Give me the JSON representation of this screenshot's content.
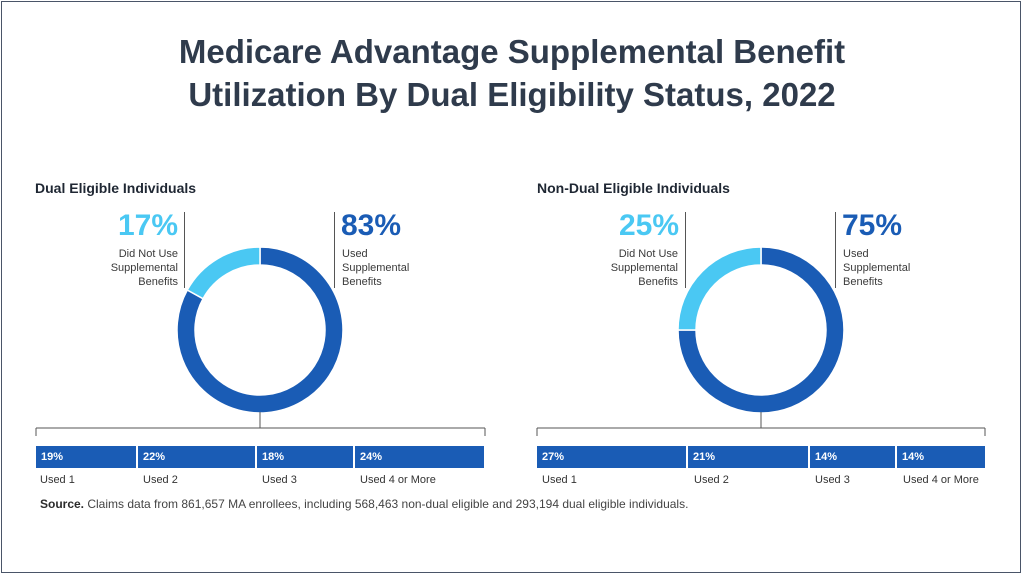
{
  "title_line1": "Medicare Advantage Supplemental Benefit",
  "title_line2": "Utilization By Dual Eligibility Status, 2022",
  "colors": {
    "used": "#1a5cb5",
    "not_used": "#4ac8f3"
  },
  "chart_data": [
    {
      "type": "pie",
      "title": "Dual Eligible Individuals",
      "slices": [
        {
          "label": "Used Supplemental Benefits",
          "value": 83,
          "display": "83%"
        },
        {
          "label": "Did Not Use Supplemental Benefits",
          "value": 17,
          "display": "17%"
        }
      ],
      "breakdown": {
        "type": "bar",
        "categories": [
          "Used 1",
          "Used 2",
          "Used 3",
          "Used 4 or More"
        ],
        "values": [
          19,
          22,
          18,
          24
        ],
        "displays": [
          "19%",
          "22%",
          "18%",
          "24%"
        ]
      }
    },
    {
      "type": "pie",
      "title": "Non-Dual Eligible Individuals",
      "slices": [
        {
          "label": "Used Supplemental Benefits",
          "value": 75,
          "display": "75%"
        },
        {
          "label": "Did Not Use Supplemental Benefits",
          "value": 25,
          "display": "25%"
        }
      ],
      "breakdown": {
        "type": "bar",
        "categories": [
          "Used 1",
          "Used 2",
          "Used 3",
          "Used 4 or More"
        ],
        "values": [
          27,
          21,
          14,
          14
        ],
        "displays": [
          "27%",
          "21%",
          "14%",
          "14%"
        ]
      }
    }
  ],
  "desc": {
    "not_used_lines": [
      "Did Not Use",
      "Supplemental",
      "Benefits"
    ],
    "used_lines": [
      "Used",
      "Supplemental",
      "Benefits"
    ]
  },
  "source": {
    "label": "Source.",
    "text": " Claims data from 861,657 MA enrollees, including 568,463 non-dual eligible and 293,194 dual eligible individuals."
  }
}
